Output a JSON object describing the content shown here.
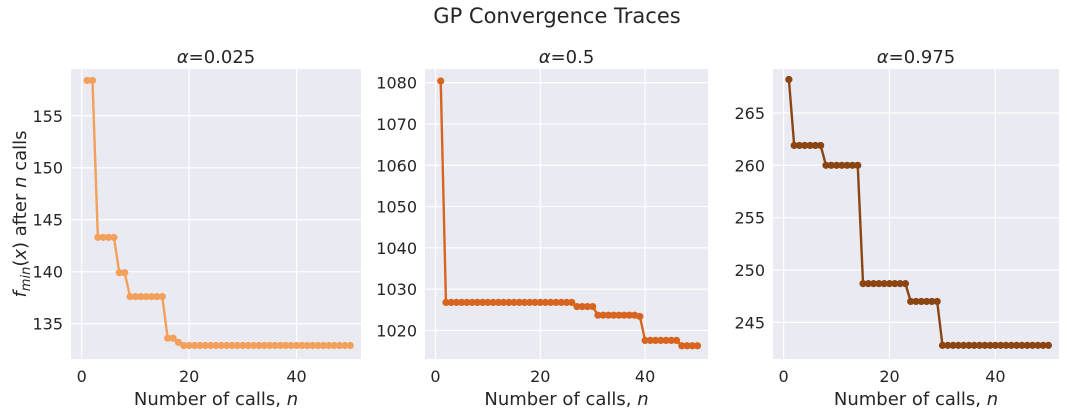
{
  "figure": {
    "suptitle": "GP Convergence Traces"
  },
  "chart_data": [
    {
      "type": "line",
      "title": "α=0.025",
      "xlabel": "Number of calls, n",
      "ylabel": "f_min(x) after n calls",
      "xlim": [
        -2,
        52
      ],
      "ylim": [
        131.6,
        159.5
      ],
      "xticks": [
        0,
        20,
        40
      ],
      "yticks": [
        135,
        140,
        145,
        150,
        155
      ],
      "grid": true,
      "color": "#f2a05a",
      "x": [
        1,
        2,
        3,
        4,
        5,
        6,
        7,
        8,
        9,
        10,
        11,
        12,
        13,
        14,
        15,
        16,
        17,
        18,
        19,
        20,
        21,
        22,
        23,
        24,
        25,
        26,
        27,
        28,
        29,
        30,
        31,
        32,
        33,
        34,
        35,
        36,
        37,
        38,
        39,
        40,
        41,
        42,
        43,
        44,
        45,
        46,
        47,
        48,
        49,
        50
      ],
      "y": [
        158.4,
        158.4,
        143.3,
        143.3,
        143.3,
        143.3,
        139.9,
        139.9,
        137.6,
        137.6,
        137.6,
        137.6,
        137.6,
        137.6,
        137.6,
        133.6,
        133.6,
        133.2,
        132.9,
        132.9,
        132.9,
        132.9,
        132.9,
        132.9,
        132.9,
        132.9,
        132.9,
        132.9,
        132.9,
        132.9,
        132.9,
        132.9,
        132.9,
        132.9,
        132.9,
        132.9,
        132.9,
        132.9,
        132.9,
        132.9,
        132.9,
        132.9,
        132.9,
        132.9,
        132.9,
        132.9,
        132.9,
        132.9,
        132.9,
        132.9
      ]
    },
    {
      "type": "line",
      "title": "α=0.5",
      "xlabel": "Number of calls, n",
      "ylabel": "",
      "xlim": [
        -2,
        52
      ],
      "ylim": [
        1013.1,
        1083.3
      ],
      "xticks": [
        0,
        20,
        40
      ],
      "yticks": [
        1020,
        1030,
        1040,
        1050,
        1060,
        1070,
        1080
      ],
      "grid": true,
      "color": "#d8651f",
      "x": [
        1,
        2,
        3,
        4,
        5,
        6,
        7,
        8,
        9,
        10,
        11,
        12,
        13,
        14,
        15,
        16,
        17,
        18,
        19,
        20,
        21,
        22,
        23,
        24,
        25,
        26,
        27,
        28,
        29,
        30,
        31,
        32,
        33,
        34,
        35,
        36,
        37,
        38,
        39,
        40,
        41,
        42,
        43,
        44,
        45,
        46,
        47,
        48,
        49,
        50
      ],
      "y": [
        1080.4,
        1026.8,
        1026.8,
        1026.8,
        1026.8,
        1026.8,
        1026.8,
        1026.8,
        1026.8,
        1026.8,
        1026.8,
        1026.8,
        1026.8,
        1026.8,
        1026.8,
        1026.8,
        1026.8,
        1026.8,
        1026.8,
        1026.8,
        1026.8,
        1026.8,
        1026.8,
        1026.8,
        1026.8,
        1026.8,
        1025.8,
        1025.8,
        1025.8,
        1025.8,
        1023.7,
        1023.7,
        1023.7,
        1023.7,
        1023.7,
        1023.7,
        1023.7,
        1023.7,
        1023.4,
        1017.6,
        1017.6,
        1017.6,
        1017.6,
        1017.6,
        1017.6,
        1017.6,
        1016.3,
        1016.3,
        1016.3,
        1016.3
      ]
    },
    {
      "type": "line",
      "title": "α=0.975",
      "xlabel": "Number of calls, n",
      "ylabel": "",
      "xlim": [
        -2,
        52
      ],
      "ylim": [
        241.5,
        269.2
      ],
      "xticks": [
        0,
        20,
        40
      ],
      "yticks": [
        245,
        250,
        255,
        260,
        265
      ],
      "grid": true,
      "color": "#8b4513",
      "x": [
        1,
        2,
        3,
        4,
        5,
        6,
        7,
        8,
        9,
        10,
        11,
        12,
        13,
        14,
        15,
        16,
        17,
        18,
        19,
        20,
        21,
        22,
        23,
        24,
        25,
        26,
        27,
        28,
        29,
        30,
        31,
        32,
        33,
        34,
        35,
        36,
        37,
        38,
        39,
        40,
        41,
        42,
        43,
        44,
        45,
        46,
        47,
        48,
        49,
        50
      ],
      "y": [
        268.2,
        261.9,
        261.9,
        261.9,
        261.9,
        261.9,
        261.9,
        260.0,
        260.0,
        260.0,
        260.0,
        260.0,
        260.0,
        260.0,
        248.7,
        248.7,
        248.7,
        248.7,
        248.7,
        248.7,
        248.7,
        248.7,
        248.7,
        247.0,
        247.0,
        247.0,
        247.0,
        247.0,
        247.0,
        242.8,
        242.8,
        242.8,
        242.8,
        242.8,
        242.8,
        242.8,
        242.8,
        242.8,
        242.8,
        242.8,
        242.8,
        242.8,
        242.8,
        242.8,
        242.8,
        242.8,
        242.8,
        242.8,
        242.8,
        242.8
      ]
    }
  ]
}
